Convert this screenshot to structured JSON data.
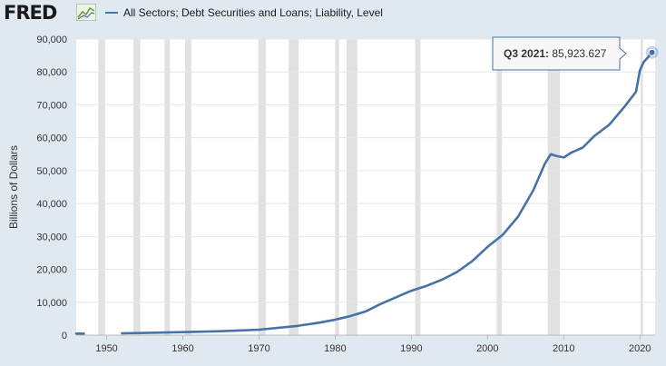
{
  "header": {
    "logo_text": "FRED",
    "logo_graph_icon": "fred-graph-icon",
    "series_title": "All Sectors; Debt Securities and Loans; Liability, Level"
  },
  "colors": {
    "series": "#4572a7",
    "recession": "#e1e1e1",
    "plot_bg": "#ffffff",
    "page_bg": "#e1e9f0"
  },
  "tooltip": {
    "label": "Q3 2021:",
    "value": "85,923.627"
  },
  "chart_data": {
    "type": "line",
    "title": "All Sectors; Debt Securities and Loans; Liability, Level",
    "ylabel": "Billions of Dollars",
    "xlabel": "",
    "xlim": [
      1946,
      2022
    ],
    "ylim": [
      0,
      90000
    ],
    "x_ticks": [
      1950,
      1960,
      1970,
      1980,
      1990,
      2000,
      2010,
      2020
    ],
    "y_ticks": [
      0,
      10000,
      20000,
      30000,
      40000,
      50000,
      60000,
      70000,
      80000,
      90000
    ],
    "y_tick_labels": [
      "0",
      "10,000",
      "20,000",
      "30,000",
      "40,000",
      "50,000",
      "60,000",
      "70,000",
      "80,000",
      "90,000"
    ],
    "grid": true,
    "recessions": [
      [
        1948.9,
        1949.8
      ],
      [
        1953.5,
        1954.4
      ],
      [
        1957.6,
        1958.3
      ],
      [
        1960.3,
        1961.1
      ],
      [
        1969.9,
        1970.9
      ],
      [
        1973.9,
        1975.2
      ],
      [
        1980.0,
        1980.5
      ],
      [
        1981.5,
        1982.9
      ],
      [
        1990.5,
        1991.2
      ],
      [
        2001.2,
        2001.9
      ],
      [
        2007.9,
        2009.5
      ],
      [
        2020.1,
        2020.4
      ]
    ],
    "series": [
      {
        "name": "All Sectors; Debt Securities and Loans; Liability, Level",
        "segments": [
          [
            [
              1946,
              480
            ],
            [
              1947,
              470
            ]
          ],
          [
            [
              1952,
              560
            ],
            [
              1955,
              660
            ],
            [
              1960,
              900
            ],
            [
              1965,
              1200
            ],
            [
              1970,
              1650
            ],
            [
              1975,
              2800
            ],
            [
              1978,
              3800
            ],
            [
              1980,
              4700
            ],
            [
              1982,
              5800
            ],
            [
              1984,
              7200
            ],
            [
              1986,
              9500
            ],
            [
              1988,
              11500
            ],
            [
              1990,
              13500
            ],
            [
              1992,
              15000
            ],
            [
              1994,
              16800
            ],
            [
              1996,
              19200
            ],
            [
              1998,
              22500
            ],
            [
              2000,
              26800
            ],
            [
              2002,
              30500
            ],
            [
              2004,
              36000
            ],
            [
              2006,
              44000
            ],
            [
              2007.5,
              52000
            ],
            [
              2008.3,
              55000
            ],
            [
              2009,
              54500
            ],
            [
              2010,
              54000
            ],
            [
              2011,
              55500
            ],
            [
              2012.5,
              57000
            ],
            [
              2014,
              60500
            ],
            [
              2016,
              64000
            ],
            [
              2018,
              69500
            ],
            [
              2019.5,
              74000
            ],
            [
              2020.0,
              80500
            ],
            [
              2020.5,
              83000
            ],
            [
              2021.2,
              84800
            ],
            [
              2021.6,
              85923.627
            ]
          ]
        ]
      }
    ],
    "highlight_point": {
      "x": 2021.6,
      "y": 85923.627
    }
  }
}
